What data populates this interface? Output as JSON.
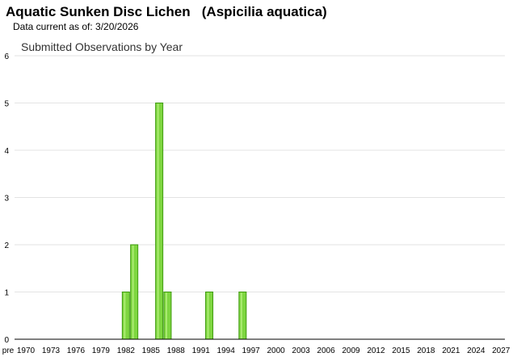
{
  "header": {
    "title": "Aquatic Sunken Disc Lichen   (Aspicilia aquatica)",
    "data_current": "Data current as of: 3/20/2026"
  },
  "chart_data": {
    "type": "bar",
    "title": "Submitted Observations by Year",
    "xlabel": "",
    "ylabel": "",
    "ylim": [
      0,
      6
    ],
    "yticks": [
      0,
      1,
      2,
      3,
      4,
      5,
      6
    ],
    "grid": true,
    "x_tick_labels": [
      "pre",
      "1970",
      "1973",
      "1976",
      "1979",
      "1982",
      "1985",
      "1988",
      "1991",
      "1994",
      "1997",
      "2000",
      "2003",
      "2006",
      "2009",
      "2012",
      "2015",
      "2018",
      "2021",
      "2024",
      "2027"
    ],
    "categories": [
      "1982",
      "1983",
      "1986",
      "1987",
      "1992",
      "1996"
    ],
    "values": [
      1,
      2,
      5,
      1,
      1,
      1
    ],
    "bar_color": "#7ed640",
    "bar_edge_color": "#3f9a10"
  }
}
